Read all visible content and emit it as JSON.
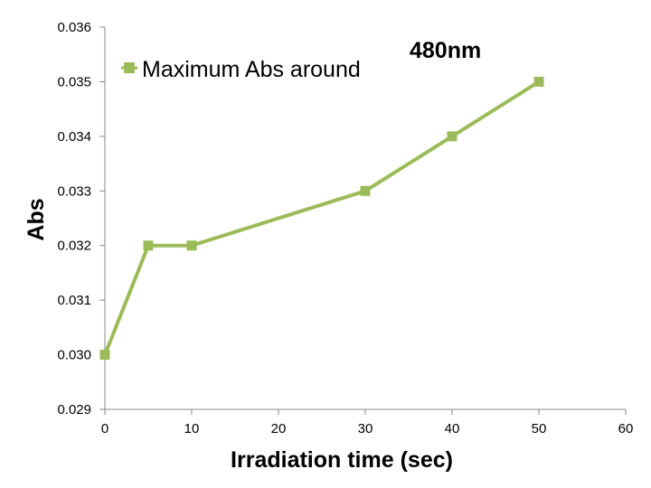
{
  "chart_data": {
    "type": "line",
    "title": "",
    "xlabel": "Irradiation time (sec)",
    "ylabel": "Abs",
    "xlim": [
      0,
      60
    ],
    "ylim": [
      0.029,
      0.036
    ],
    "x_ticks": [
      "0",
      "10",
      "20",
      "30",
      "40",
      "50",
      "60"
    ],
    "y_ticks": [
      "0.029",
      "0.030",
      "0.031",
      "0.032",
      "0.033",
      "0.034",
      "0.035",
      "0.036"
    ],
    "grid": false,
    "legend_position": "top-left",
    "series": [
      {
        "name": "Maximum Abs around",
        "color": "#9bbb59",
        "marker": "square",
        "x": [
          0,
          5,
          10,
          30,
          40,
          50
        ],
        "y": [
          0.03,
          0.032,
          0.032,
          0.033,
          0.034,
          0.035
        ]
      }
    ],
    "annotations": [
      {
        "text": "480nm"
      }
    ]
  }
}
